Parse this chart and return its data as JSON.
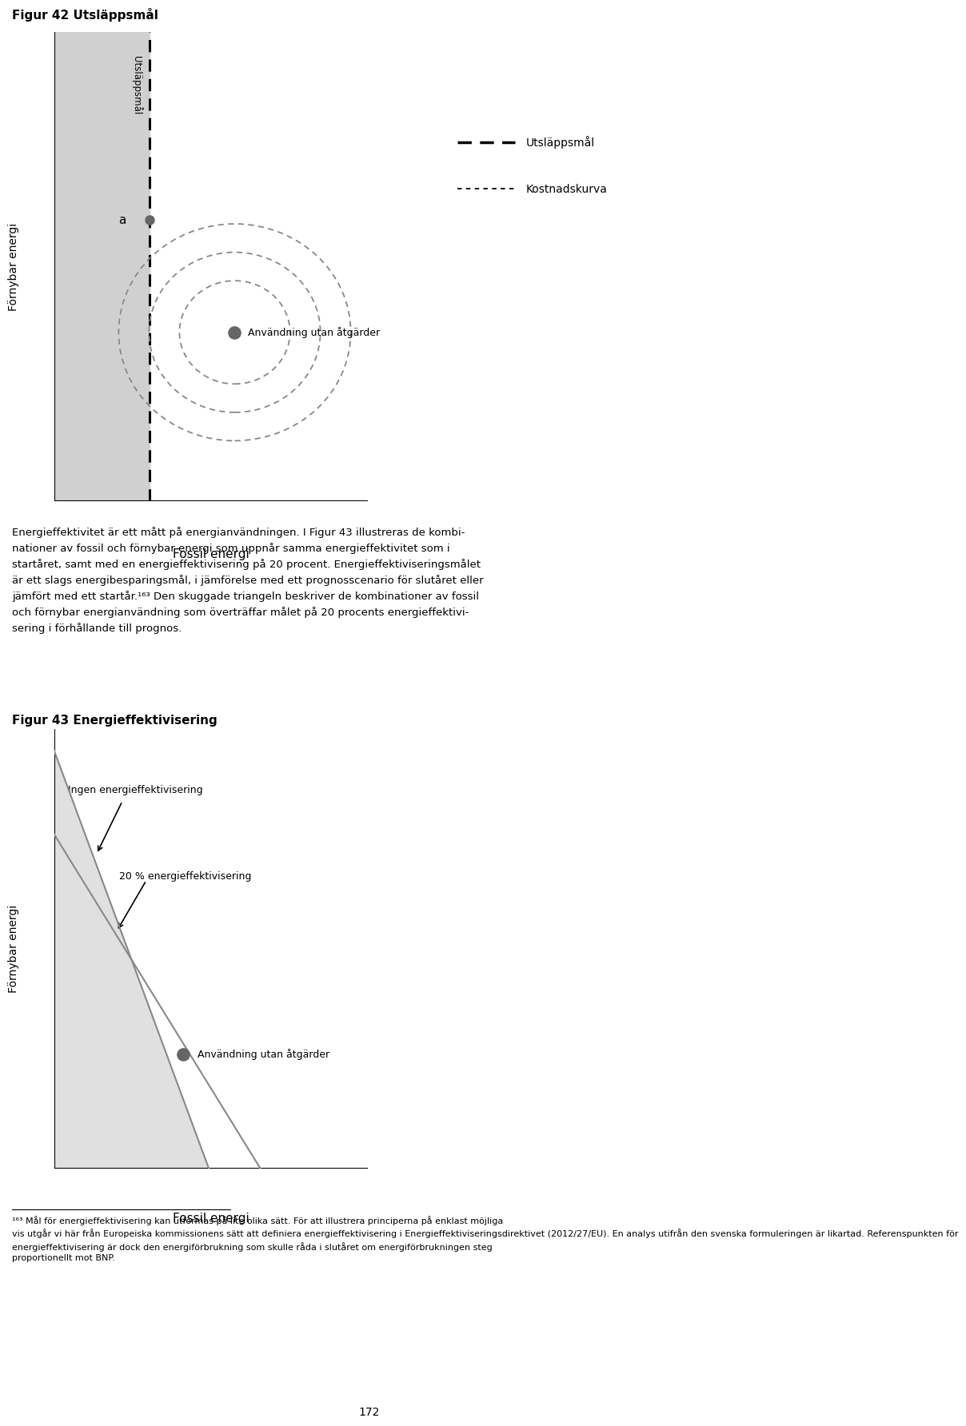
{
  "fig42_title": "Figur 42 Utsläppsmål",
  "fig43_title": "Figur 43 Energieffektivisering",
  "fig42_ylabel": "Förnybar energi",
  "fig43_ylabel": "Förnybar energi",
  "fig42_xlabel": "Fossil energi",
  "fig43_xlabel": "Fossil energi",
  "fig42_utslappsmal_label": "Utsläppsmål",
  "fig42_kostnadskurva_label": "Kostnadskurva",
  "fig42_anvandning_label": "Användning utan åtgärder",
  "fig43_ingen_label": "Ingen energieffektivisering",
  "fig43_20pct_label": "20 % energieffektivisering",
  "fig43_anvandning_label": "Användning utan åtgärder",
  "fig42_a_label": "a",
  "page_number": "172",
  "background_color": "#ffffff",
  "gray_fill": "#d0d0d0",
  "light_gray_fill": "#e0e0e0",
  "dot_color": "#666666",
  "line_color": "#888888",
  "dashed_color": "#888888",
  "body_text_line1": "Energieffektivitet är ett mått på energianvändningen. I Figur 43 illustreras de kombi-",
  "body_text_line2": "nationer av fossil och förnybar energi som uppnår samma energieffektivitet som i",
  "body_text_line3": "startåret, samt med en energieffektivisering på 20 procent. Energieffektiviseringsmålet",
  "body_text_line4": "är ett slags energibesparingsmål, i jämförelse med ett prognosscenario för slutåret eller",
  "body_text_line5": "jämfört med ett startår.¹⁶³ Den skuggade triangeln beskriver de kombinationer av fossil",
  "body_text_line6": "och förnybar energianvändning som överträffar målet på 20 procents energieffektivi-",
  "body_text_line7": "sering i förhållande till prognos.",
  "fn_line1": "¹⁶³ Mål för energieffektivisering kan utformas på lite olika sätt. För att illustrera principerna på enklast möjliga",
  "fn_line2": "vis utgår vi här från Europeiska kommissionens sätt att definiera energieffektivisering i Energieffektiviseringsdirektivet (2012/27/EU). En analys utifrån den svenska formuleringen är likartad. Referenspunkten för",
  "fn_line3": "energieffektivisering är dock den energiförbrukning som skulle råda i slutåret om energiförbrukningen steg",
  "fn_line4": "proportionellt mot BNP."
}
